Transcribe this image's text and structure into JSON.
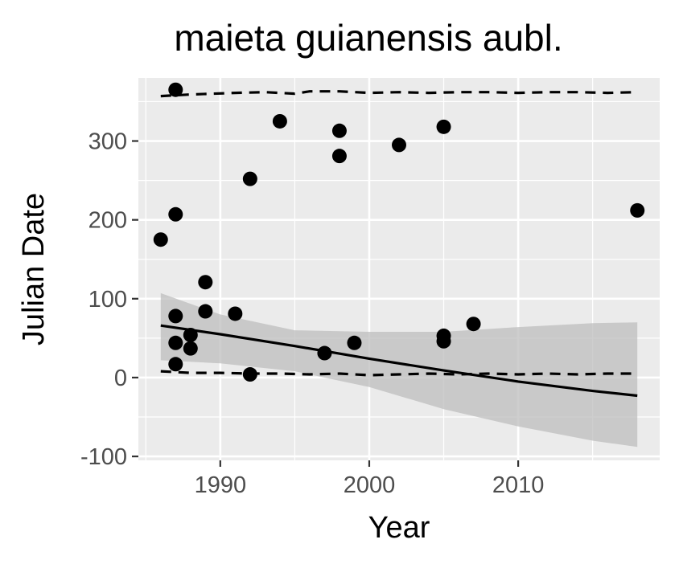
{
  "chart_data": {
    "type": "scatter",
    "title": "maieta guianensis aubl.",
    "xlabel": "Year",
    "ylabel": "Julian Date",
    "xlim": [
      1984.5,
      2019.5
    ],
    "ylim": [
      -105,
      380
    ],
    "x_ticks": [
      1990,
      2000,
      2010
    ],
    "x_tick_labels": [
      "1990",
      "2000",
      "2010"
    ],
    "y_ticks": [
      -100,
      0,
      100,
      200,
      300
    ],
    "y_tick_labels": [
      "-100",
      "0",
      "100",
      "200",
      "300"
    ],
    "grid": true,
    "legend": "none",
    "colors": {
      "panel": "#ebebeb",
      "grid": "#ffffff",
      "points": "#000000",
      "ribbon": "#bdbdbd",
      "line": "#000000"
    },
    "points": [
      {
        "x": 1986,
        "y": 175
      },
      {
        "x": 1987,
        "y": 365
      },
      {
        "x": 1987,
        "y": 207
      },
      {
        "x": 1987,
        "y": 78
      },
      {
        "x": 1987,
        "y": 44
      },
      {
        "x": 1987,
        "y": 17
      },
      {
        "x": 1988,
        "y": 54
      },
      {
        "x": 1988,
        "y": 37
      },
      {
        "x": 1989,
        "y": 121
      },
      {
        "x": 1989,
        "y": 84
      },
      {
        "x": 1991,
        "y": 81
      },
      {
        "x": 1992,
        "y": 252
      },
      {
        "x": 1992,
        "y": 4
      },
      {
        "x": 1994,
        "y": 325
      },
      {
        "x": 1997,
        "y": 31
      },
      {
        "x": 1998,
        "y": 313
      },
      {
        "x": 1998,
        "y": 281
      },
      {
        "x": 1999,
        "y": 44
      },
      {
        "x": 2002,
        "y": 295
      },
      {
        "x": 2005,
        "y": 318
      },
      {
        "x": 2005,
        "y": 53
      },
      {
        "x": 2005,
        "y": 46
      },
      {
        "x": 2007,
        "y": 68
      },
      {
        "x": 2018,
        "y": 212
      }
    ],
    "trend": {
      "x": [
        1986,
        1990,
        1995,
        2000,
        2005,
        2010,
        2015,
        2018
      ],
      "y": [
        66,
        55,
        40,
        24,
        9,
        -5,
        -17,
        -23
      ],
      "lower": [
        22,
        18,
        8,
        -12,
        -40,
        -62,
        -80,
        -88
      ],
      "upper": [
        107,
        80,
        60,
        58,
        58,
        64,
        69,
        70
      ]
    },
    "upper_quantile": {
      "x": [
        1986,
        1988,
        1991,
        1993,
        1995,
        1996,
        1998,
        2000,
        2002,
        2004,
        2006,
        2008,
        2010,
        2012,
        2014,
        2016,
        2018
      ],
      "y": [
        357,
        359,
        361,
        362,
        360,
        363,
        363,
        361,
        362,
        361,
        362,
        362,
        361,
        362,
        362,
        361,
        362
      ]
    },
    "lower_quantile": {
      "x": [
        1986,
        1988,
        1990,
        1992,
        1994,
        1996,
        1998,
        2000,
        2002,
        2004,
        2006,
        2008,
        2010,
        2012,
        2014,
        2016,
        2018
      ],
      "y": [
        8,
        6,
        6,
        5,
        5,
        4,
        5,
        3,
        4,
        5,
        4,
        5,
        4,
        5,
        4,
        5,
        5
      ]
    }
  }
}
